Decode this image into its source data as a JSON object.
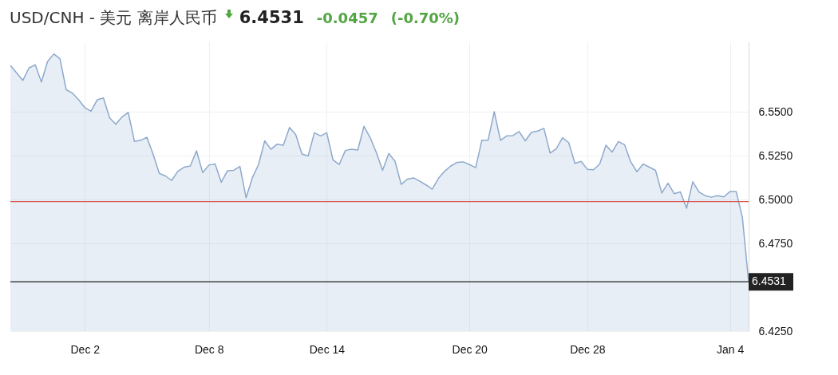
{
  "chart_data": {
    "type": "area",
    "title": "USD/CNH - 美元 离岸人民币",
    "annotations": [
      "6.4531",
      "-0.0457",
      "(-0.70%)"
    ],
    "categories": [
      null,
      null,
      null,
      null,
      null,
      null,
      null,
      null,
      null,
      null,
      null,
      null,
      "Dec 2",
      null,
      null,
      null,
      null,
      null,
      null,
      null,
      null,
      null,
      null,
      null,
      null,
      null,
      null,
      null,
      null,
      null,
      null,
      null,
      "Dec 8",
      null,
      null,
      null,
      null,
      null,
      null,
      null,
      null,
      null,
      null,
      null,
      null,
      null,
      null,
      null,
      null,
      null,
      null,
      "Dec 14",
      null,
      null,
      null,
      null,
      null,
      null,
      null,
      null,
      null,
      null,
      null,
      null,
      null,
      null,
      null,
      null,
      null,
      null,
      null,
      null,
      null,
      null,
      "Dec 20",
      null,
      null,
      null,
      null,
      null,
      null,
      null,
      null,
      null,
      null,
      null,
      null,
      null,
      null,
      null,
      null,
      null,
      null,
      "Dec 28",
      null,
      null,
      null,
      null,
      null,
      null,
      null,
      null,
      null,
      null,
      null,
      null,
      null,
      null,
      null,
      null,
      null,
      null,
      null,
      null,
      null,
      null,
      "Jan 4",
      null,
      null,
      null
    ],
    "series": [
      {
        "color": "#8ea9cc",
        "values": [
          6.5764,
          6.5722,
          6.5678,
          6.5749,
          6.5768,
          6.5669,
          6.5786,
          6.5829,
          6.5802,
          6.5625,
          6.5606,
          6.5568,
          6.5523,
          6.5503,
          6.5568,
          6.5578,
          6.5465,
          6.5428,
          6.547,
          6.5496,
          6.5331,
          6.5337,
          6.5354,
          6.5259,
          6.5149,
          6.5134,
          6.5108,
          6.5161,
          6.5184,
          6.5191,
          6.5277,
          6.5153,
          6.5196,
          6.5202,
          6.5098,
          6.5164,
          6.5166,
          6.5188,
          6.501,
          6.5123,
          6.5199,
          6.5334,
          6.5286,
          6.5315,
          6.5309,
          6.541,
          6.5369,
          6.5259,
          6.5248,
          6.538,
          6.5362,
          6.538,
          6.5226,
          6.5199,
          6.5279,
          6.5286,
          6.5282,
          6.5417,
          6.5352,
          6.5267,
          6.5166,
          6.5262,
          6.5218,
          6.5086,
          6.5116,
          6.5123,
          6.5104,
          6.5083,
          6.5059,
          6.512,
          6.5161,
          6.5191,
          6.5211,
          6.5214,
          6.5199,
          6.5181,
          6.5337,
          6.5337,
          6.55,
          6.5337,
          6.5362,
          6.5364,
          6.5387,
          6.5334,
          6.5383,
          6.539,
          6.5405,
          6.5264,
          6.5289,
          6.5352,
          6.5324,
          6.5206,
          6.5217,
          6.5172,
          6.5169,
          6.5202,
          6.5309,
          6.527,
          6.533,
          6.5312,
          6.5214,
          6.5158,
          6.5202,
          6.5184,
          6.5166,
          6.5037,
          6.5093,
          6.5033,
          6.5043,
          6.495,
          6.5101,
          6.5043,
          6.5022,
          6.5013,
          6.5022,
          6.5015,
          6.5045,
          6.5045,
          6.4897,
          6.4531
        ]
      }
    ],
    "ylim": [
      6.425,
      6.59
    ],
    "yticks": [
      {
        "value": 6.425,
        "label": "6.4250"
      },
      {
        "value": 6.475,
        "label": "6.4750"
      },
      {
        "value": 6.5,
        "label": "6.5000"
      },
      {
        "value": 6.525,
        "label": "6.5250"
      },
      {
        "value": 6.55,
        "label": "6.5500"
      }
    ],
    "ref_lines": [
      {
        "axis": "y",
        "value": 6.4988,
        "color": "#d9534f"
      },
      {
        "axis": "y",
        "value": 6.4531,
        "label": "6.4531",
        "color": "#222222"
      }
    ],
    "grid": true
  }
}
